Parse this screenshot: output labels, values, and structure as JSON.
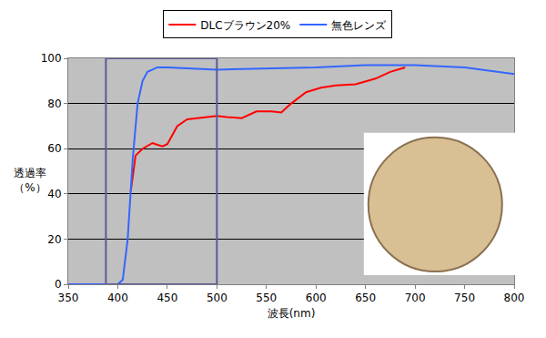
{
  "chart_data": {
    "type": "line",
    "xlabel": "波長(nm)",
    "ylabel": "透過率\n（%）",
    "series": [
      {
        "name": "DLCブラウン20%",
        "color": "#ff0000",
        "x": [
          413,
          418,
          425,
          435,
          445,
          450,
          460,
          470,
          490,
          500,
          510,
          525,
          540,
          555,
          565,
          575,
          590,
          605,
          620,
          640,
          660,
          675,
          690
        ],
        "values": [
          41,
          57,
          60,
          62.5,
          61,
          62,
          70,
          73,
          74,
          74.5,
          74,
          73.5,
          76.5,
          76.5,
          76,
          80,
          85,
          87,
          88,
          88.5,
          91,
          94,
          96
        ]
      },
      {
        "name": "無色レンズ",
        "color": "#3366ff",
        "x": [
          350,
          400,
          405,
          410,
          415,
          420,
          425,
          430,
          440,
          450,
          500,
          550,
          600,
          650,
          700,
          750,
          800
        ],
        "values": [
          0,
          0,
          2,
          20,
          55,
          80,
          90,
          94,
          96,
          96,
          95,
          95.5,
          96,
          97,
          97,
          96,
          93
        ]
      }
    ],
    "highlight_x": [
      388,
      500
    ],
    "xlim": [
      350,
      800
    ],
    "xticks": [
      350,
      400,
      450,
      500,
      550,
      600,
      650,
      700,
      750,
      800
    ],
    "ylim": [
      0,
      100
    ],
    "yticks": [
      0,
      20,
      40,
      60,
      80,
      100
    ],
    "grid": true,
    "legend": "top"
  }
}
